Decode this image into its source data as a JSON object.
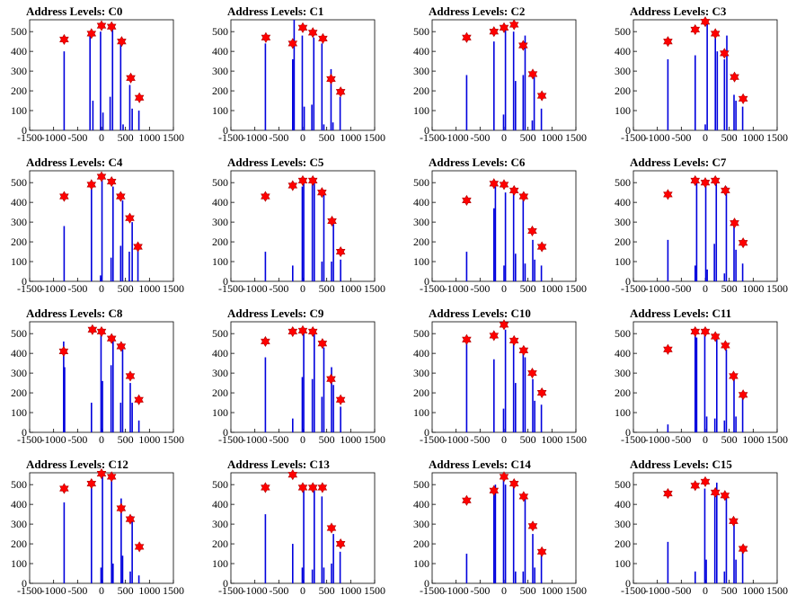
{
  "figure": {
    "rows": 4,
    "cols": 4
  },
  "colors": {
    "bar": "#0000dd",
    "peak_marker": "#ff0000",
    "frame": "#000000",
    "background": "#ffffff"
  },
  "chart_data": [
    {
      "type": "bar",
      "title": "Address Levels: C0",
      "xlim": [
        -1500,
        1500
      ],
      "ylim": [
        0,
        560
      ],
      "x_ticks": [
        "-1500",
        "-1000",
        "-500",
        "0",
        "500",
        "1000",
        "1500"
      ],
      "y_ticks": [
        "0",
        "100",
        "200",
        "300",
        "400",
        "500"
      ],
      "x": [
        -780,
        -240,
        -180,
        -20,
        30,
        180,
        230,
        400,
        450,
        590,
        640,
        780
      ],
      "values": [
        400,
        480,
        150,
        500,
        90,
        170,
        520,
        440,
        30,
        230,
        110,
        100
      ],
      "peaks": [
        {
          "x": -780,
          "y": 460
        },
        {
          "x": -210,
          "y": 490
        },
        {
          "x": 0,
          "y": 530
        },
        {
          "x": 210,
          "y": 525
        },
        {
          "x": 420,
          "y": 450
        },
        {
          "x": 610,
          "y": 265
        },
        {
          "x": 790,
          "y": 165
        }
      ]
    },
    {
      "type": "bar",
      "title": "Address Levels: C1",
      "xlim": [
        -1500,
        1500
      ],
      "ylim": [
        0,
        560
      ],
      "x_ticks": [
        "-1500",
        "-1000",
        "-500",
        "0",
        "500",
        "1000",
        "1500"
      ],
      "y_ticks": [
        "0",
        "100",
        "200",
        "300",
        "400",
        "500"
      ],
      "x": [
        -780,
        -210,
        -180,
        -10,
        30,
        190,
        230,
        400,
        440,
        590,
        630,
        780
      ],
      "values": [
        440,
        360,
        560,
        480,
        120,
        130,
        470,
        440,
        30,
        310,
        40,
        170
      ],
      "peaks": [
        {
          "x": -770,
          "y": 470
        },
        {
          "x": -210,
          "y": 440
        },
        {
          "x": 0,
          "y": 520
        },
        {
          "x": 210,
          "y": 495
        },
        {
          "x": 420,
          "y": 465
        },
        {
          "x": 590,
          "y": 260
        },
        {
          "x": 790,
          "y": 195
        }
      ]
    },
    {
      "type": "bar",
      "title": "Address Levels: C2",
      "xlim": [
        -1500,
        1500
      ],
      "ylim": [
        0,
        560
      ],
      "x_ticks": [
        "-1500",
        "-1000",
        "-500",
        "0",
        "500",
        "1000",
        "1500"
      ],
      "y_ticks": [
        "0",
        "100",
        "200",
        "300",
        "400",
        "500"
      ],
      "x": [
        -780,
        -210,
        -10,
        30,
        200,
        240,
        400,
        440,
        590,
        630,
        780
      ],
      "values": [
        280,
        450,
        80,
        520,
        500,
        250,
        280,
        480,
        50,
        270,
        110
      ],
      "peaks": [
        {
          "x": -780,
          "y": 470
        },
        {
          "x": -210,
          "y": 500
        },
        {
          "x": 0,
          "y": 520
        },
        {
          "x": 210,
          "y": 535
        },
        {
          "x": 400,
          "y": 430
        },
        {
          "x": 600,
          "y": 285
        },
        {
          "x": 790,
          "y": 175
        }
      ]
    },
    {
      "type": "bar",
      "title": "Address Levels: C3",
      "xlim": [
        -1500,
        1500
      ],
      "ylim": [
        0,
        560
      ],
      "x_ticks": [
        "-1500",
        "-1000",
        "-500",
        "0",
        "500",
        "1000",
        "1500"
      ],
      "y_ticks": [
        "0",
        "100",
        "200",
        "300",
        "400",
        "500"
      ],
      "x": [
        -780,
        -210,
        0,
        40,
        210,
        250,
        400,
        450,
        600,
        640,
        780
      ],
      "values": [
        360,
        380,
        30,
        540,
        480,
        400,
        360,
        480,
        180,
        150,
        120
      ],
      "peaks": [
        {
          "x": -780,
          "y": 450
        },
        {
          "x": -210,
          "y": 510
        },
        {
          "x": 0,
          "y": 550
        },
        {
          "x": 210,
          "y": 490
        },
        {
          "x": 400,
          "y": 390
        },
        {
          "x": 610,
          "y": 270
        },
        {
          "x": 790,
          "y": 160
        }
      ]
    },
    {
      "type": "bar",
      "title": "Address Levels: C4",
      "xlim": [
        -1500,
        1500
      ],
      "ylim": [
        0,
        560
      ],
      "x_ticks": [
        "-1500",
        "-1000",
        "-500",
        "0",
        "500",
        "1000",
        "1500"
      ],
      "y_ticks": [
        "0",
        "100",
        "200",
        "300",
        "400",
        "500"
      ],
      "x": [
        -780,
        -210,
        -20,
        10,
        200,
        240,
        400,
        440,
        580,
        640,
        760
      ],
      "values": [
        280,
        490,
        30,
        530,
        120,
        480,
        180,
        410,
        150,
        300,
        160
      ],
      "peaks": [
        {
          "x": -780,
          "y": 430
        },
        {
          "x": -210,
          "y": 490
        },
        {
          "x": 0,
          "y": 530
        },
        {
          "x": 210,
          "y": 505
        },
        {
          "x": 400,
          "y": 430
        },
        {
          "x": 590,
          "y": 320
        },
        {
          "x": 760,
          "y": 175
        }
      ]
    },
    {
      "type": "bar",
      "title": "Address Levels: C5",
      "xlim": [
        -1500,
        1500
      ],
      "ylim": [
        0,
        560
      ],
      "x_ticks": [
        "-1500",
        "-1000",
        "-500",
        "0",
        "500",
        "1000",
        "1500"
      ],
      "y_ticks": [
        "0",
        "100",
        "200",
        "300",
        "400",
        "500"
      ],
      "x": [
        -780,
        -210,
        -10,
        20,
        200,
        240,
        400,
        440,
        600,
        640,
        790
      ],
      "values": [
        150,
        80,
        480,
        520,
        490,
        500,
        100,
        440,
        100,
        290,
        110
      ],
      "peaks": [
        {
          "x": -780,
          "y": 430
        },
        {
          "x": -210,
          "y": 485
        },
        {
          "x": 0,
          "y": 510
        },
        {
          "x": 210,
          "y": 510
        },
        {
          "x": 400,
          "y": 450
        },
        {
          "x": 610,
          "y": 305
        },
        {
          "x": 790,
          "y": 150
        }
      ]
    },
    {
      "type": "bar",
      "title": "Address Levels: C6",
      "xlim": [
        -1500,
        1500
      ],
      "ylim": [
        0,
        560
      ],
      "x_ticks": [
        "-1500",
        "-1000",
        "-500",
        "0",
        "500",
        "1000",
        "1500"
      ],
      "y_ticks": [
        "0",
        "100",
        "200",
        "300",
        "400",
        "500"
      ],
      "x": [
        -780,
        -210,
        -180,
        0,
        30,
        200,
        240,
        400,
        440,
        600,
        640,
        780
      ],
      "values": [
        150,
        370,
        480,
        80,
        450,
        460,
        140,
        440,
        90,
        210,
        110,
        80
      ],
      "peaks": [
        {
          "x": -780,
          "y": 410
        },
        {
          "x": -210,
          "y": 495
        },
        {
          "x": 0,
          "y": 490
        },
        {
          "x": 210,
          "y": 460
        },
        {
          "x": 410,
          "y": 430
        },
        {
          "x": 590,
          "y": 255
        },
        {
          "x": 790,
          "y": 175
        }
      ]
    },
    {
      "type": "bar",
      "title": "Address Levels: C7",
      "xlim": [
        -1500,
        1500
      ],
      "ylim": [
        0,
        560
      ],
      "x_ticks": [
        "-1500",
        "-1000",
        "-500",
        "0",
        "500",
        "1000",
        "1500"
      ],
      "y_ticks": [
        "0",
        "100",
        "200",
        "300",
        "400",
        "500"
      ],
      "x": [
        -780,
        -210,
        -180,
        10,
        40,
        190,
        230,
        400,
        440,
        600,
        640,
        780
      ],
      "values": [
        210,
        80,
        520,
        490,
        60,
        190,
        520,
        40,
        480,
        290,
        160,
        90
      ],
      "peaks": [
        {
          "x": -780,
          "y": 440
        },
        {
          "x": -210,
          "y": 510
        },
        {
          "x": 0,
          "y": 500
        },
        {
          "x": 210,
          "y": 510
        },
        {
          "x": 420,
          "y": 460
        },
        {
          "x": 610,
          "y": 295
        },
        {
          "x": 790,
          "y": 195
        }
      ]
    },
    {
      "type": "bar",
      "title": "Address Levels: C8",
      "xlim": [
        -1500,
        1500
      ],
      "ylim": [
        0,
        560
      ],
      "x_ticks": [
        "-1500",
        "-1000",
        "-500",
        "0",
        "500",
        "1000",
        "1500"
      ],
      "y_ticks": [
        "0",
        "100",
        "200",
        "300",
        "400",
        "500"
      ],
      "x": [
        -790,
        -770,
        -210,
        -10,
        20,
        200,
        240,
        400,
        440,
        600,
        640,
        780
      ],
      "values": [
        460,
        330,
        150,
        500,
        260,
        340,
        470,
        150,
        420,
        250,
        150,
        60
      ],
      "peaks": [
        {
          "x": -790,
          "y": 410
        },
        {
          "x": -190,
          "y": 520
        },
        {
          "x": 0,
          "y": 510
        },
        {
          "x": 210,
          "y": 475
        },
        {
          "x": 410,
          "y": 435
        },
        {
          "x": 600,
          "y": 285
        },
        {
          "x": 780,
          "y": 165
        }
      ]
    },
    {
      "type": "bar",
      "title": "Address Levels: C9",
      "xlim": [
        -1500,
        1500
      ],
      "ylim": [
        0,
        560
      ],
      "x_ticks": [
        "-1500",
        "-1000",
        "-500",
        "0",
        "500",
        "1000",
        "1500"
      ],
      "y_ticks": [
        "0",
        "100",
        "200",
        "300",
        "400",
        "500"
      ],
      "x": [
        -780,
        -210,
        -10,
        20,
        200,
        240,
        400,
        440,
        600,
        640,
        790
      ],
      "values": [
        380,
        70,
        280,
        510,
        270,
        500,
        180,
        430,
        330,
        240,
        130
      ],
      "peaks": [
        {
          "x": -780,
          "y": 460
        },
        {
          "x": -210,
          "y": 510
        },
        {
          "x": 0,
          "y": 515
        },
        {
          "x": 210,
          "y": 510
        },
        {
          "x": 410,
          "y": 450
        },
        {
          "x": 590,
          "y": 270
        },
        {
          "x": 790,
          "y": 165
        }
      ]
    },
    {
      "type": "bar",
      "title": "Address Levels: C10",
      "xlim": [
        -1500,
        1500
      ],
      "ylim": [
        0,
        560
      ],
      "x_ticks": [
        "-1500",
        "-1000",
        "-500",
        "0",
        "500",
        "1000",
        "1500"
      ],
      "y_ticks": [
        "0",
        "100",
        "200",
        "300",
        "400",
        "500"
      ],
      "x": [
        -780,
        -210,
        -10,
        30,
        200,
        240,
        400,
        440,
        600,
        640,
        780
      ],
      "values": [
        470,
        370,
        120,
        520,
        480,
        250,
        430,
        380,
        270,
        160,
        140
      ],
      "peaks": [
        {
          "x": -780,
          "y": 470
        },
        {
          "x": -210,
          "y": 490
        },
        {
          "x": 0,
          "y": 545
        },
        {
          "x": 210,
          "y": 465
        },
        {
          "x": 410,
          "y": 415
        },
        {
          "x": 590,
          "y": 300
        },
        {
          "x": 790,
          "y": 200
        }
      ]
    },
    {
      "type": "bar",
      "title": "Address Levels: C11",
      "xlim": [
        -1500,
        1500
      ],
      "ylim": [
        0,
        560
      ],
      "x_ticks": [
        "-1500",
        "-1000",
        "-500",
        "0",
        "500",
        "1000",
        "1500"
      ],
      "y_ticks": [
        "0",
        "100",
        "200",
        "300",
        "400",
        "500"
      ],
      "x": [
        -780,
        -210,
        -180,
        -10,
        30,
        200,
        240,
        400,
        440,
        600,
        640,
        780
      ],
      "values": [
        40,
        500,
        480,
        500,
        80,
        70,
        480,
        60,
        420,
        280,
        80,
        180
      ],
      "peaks": [
        {
          "x": -780,
          "y": 420
        },
        {
          "x": -210,
          "y": 510
        },
        {
          "x": 0,
          "y": 510
        },
        {
          "x": 210,
          "y": 485
        },
        {
          "x": 420,
          "y": 440
        },
        {
          "x": 590,
          "y": 285
        },
        {
          "x": 790,
          "y": 190
        }
      ]
    },
    {
      "type": "bar",
      "title": "Address Levels: C12",
      "xlim": [
        -1500,
        1500
      ],
      "ylim": [
        0,
        560
      ],
      "x_ticks": [
        "-1500",
        "-1000",
        "-500",
        "0",
        "500",
        "1000",
        "1500"
      ],
      "y_ticks": [
        "0",
        "100",
        "200",
        "300",
        "400",
        "500"
      ],
      "x": [
        -780,
        -210,
        -10,
        20,
        210,
        240,
        410,
        440,
        600,
        640,
        780
      ],
      "values": [
        410,
        490,
        80,
        560,
        520,
        100,
        430,
        140,
        60,
        340,
        40
      ],
      "peaks": [
        {
          "x": -780,
          "y": 480
        },
        {
          "x": -210,
          "y": 505
        },
        {
          "x": 0,
          "y": 555
        },
        {
          "x": 210,
          "y": 540
        },
        {
          "x": 410,
          "y": 380
        },
        {
          "x": 600,
          "y": 325
        },
        {
          "x": 790,
          "y": 185
        }
      ]
    },
    {
      "type": "bar",
      "title": "Address Levels: C13",
      "xlim": [
        -1500,
        1500
      ],
      "ylim": [
        0,
        560
      ],
      "x_ticks": [
        "-1500",
        "-1000",
        "-500",
        "0",
        "500",
        "1000",
        "1500"
      ],
      "y_ticks": [
        "0",
        "100",
        "200",
        "300",
        "400",
        "500"
      ],
      "x": [
        -780,
        -210,
        -10,
        20,
        200,
        240,
        400,
        440,
        600,
        640,
        780
      ],
      "values": [
        350,
        200,
        80,
        470,
        70,
        470,
        440,
        80,
        100,
        250,
        160
      ],
      "peaks": [
        {
          "x": -780,
          "y": 485
        },
        {
          "x": -210,
          "y": 550
        },
        {
          "x": 0,
          "y": 485
        },
        {
          "x": 210,
          "y": 485
        },
        {
          "x": 410,
          "y": 485
        },
        {
          "x": 600,
          "y": 280
        },
        {
          "x": 790,
          "y": 200
        }
      ]
    },
    {
      "type": "bar",
      "title": "Address Levels: C14",
      "xlim": [
        -1500,
        1500
      ],
      "ylim": [
        0,
        560
      ],
      "x_ticks": [
        "-1500",
        "-1000",
        "-500",
        "0",
        "500",
        "1000",
        "1500"
      ],
      "y_ticks": [
        "0",
        "100",
        "200",
        "300",
        "400",
        "500"
      ],
      "x": [
        -780,
        -210,
        -180,
        -10,
        30,
        200,
        240,
        400,
        440,
        600,
        640,
        780
      ],
      "values": [
        150,
        460,
        500,
        540,
        500,
        490,
        60,
        60,
        440,
        250,
        80,
        170
      ],
      "peaks": [
        {
          "x": -780,
          "y": 420
        },
        {
          "x": -210,
          "y": 470
        },
        {
          "x": 0,
          "y": 540
        },
        {
          "x": 210,
          "y": 505
        },
        {
          "x": 410,
          "y": 440
        },
        {
          "x": 600,
          "y": 290
        },
        {
          "x": 790,
          "y": 160
        }
      ]
    },
    {
      "type": "bar",
      "title": "Address Levels: C15",
      "xlim": [
        -1500,
        1500
      ],
      "ylim": [
        0,
        560
      ],
      "x_ticks": [
        "-1500",
        "-1000",
        "-500",
        "0",
        "500",
        "1000",
        "1500"
      ],
      "y_ticks": [
        "0",
        "100",
        "200",
        "300",
        "400",
        "500"
      ],
      "x": [
        -780,
        -210,
        -10,
        20,
        200,
        240,
        400,
        440,
        600,
        640,
        780
      ],
      "values": [
        210,
        60,
        480,
        120,
        460,
        510,
        60,
        440,
        320,
        120,
        180
      ],
      "peaks": [
        {
          "x": -780,
          "y": 455
        },
        {
          "x": -210,
          "y": 495
        },
        {
          "x": 0,
          "y": 515
        },
        {
          "x": 210,
          "y": 460
        },
        {
          "x": 410,
          "y": 445
        },
        {
          "x": 590,
          "y": 315
        },
        {
          "x": 790,
          "y": 175
        }
      ]
    }
  ]
}
